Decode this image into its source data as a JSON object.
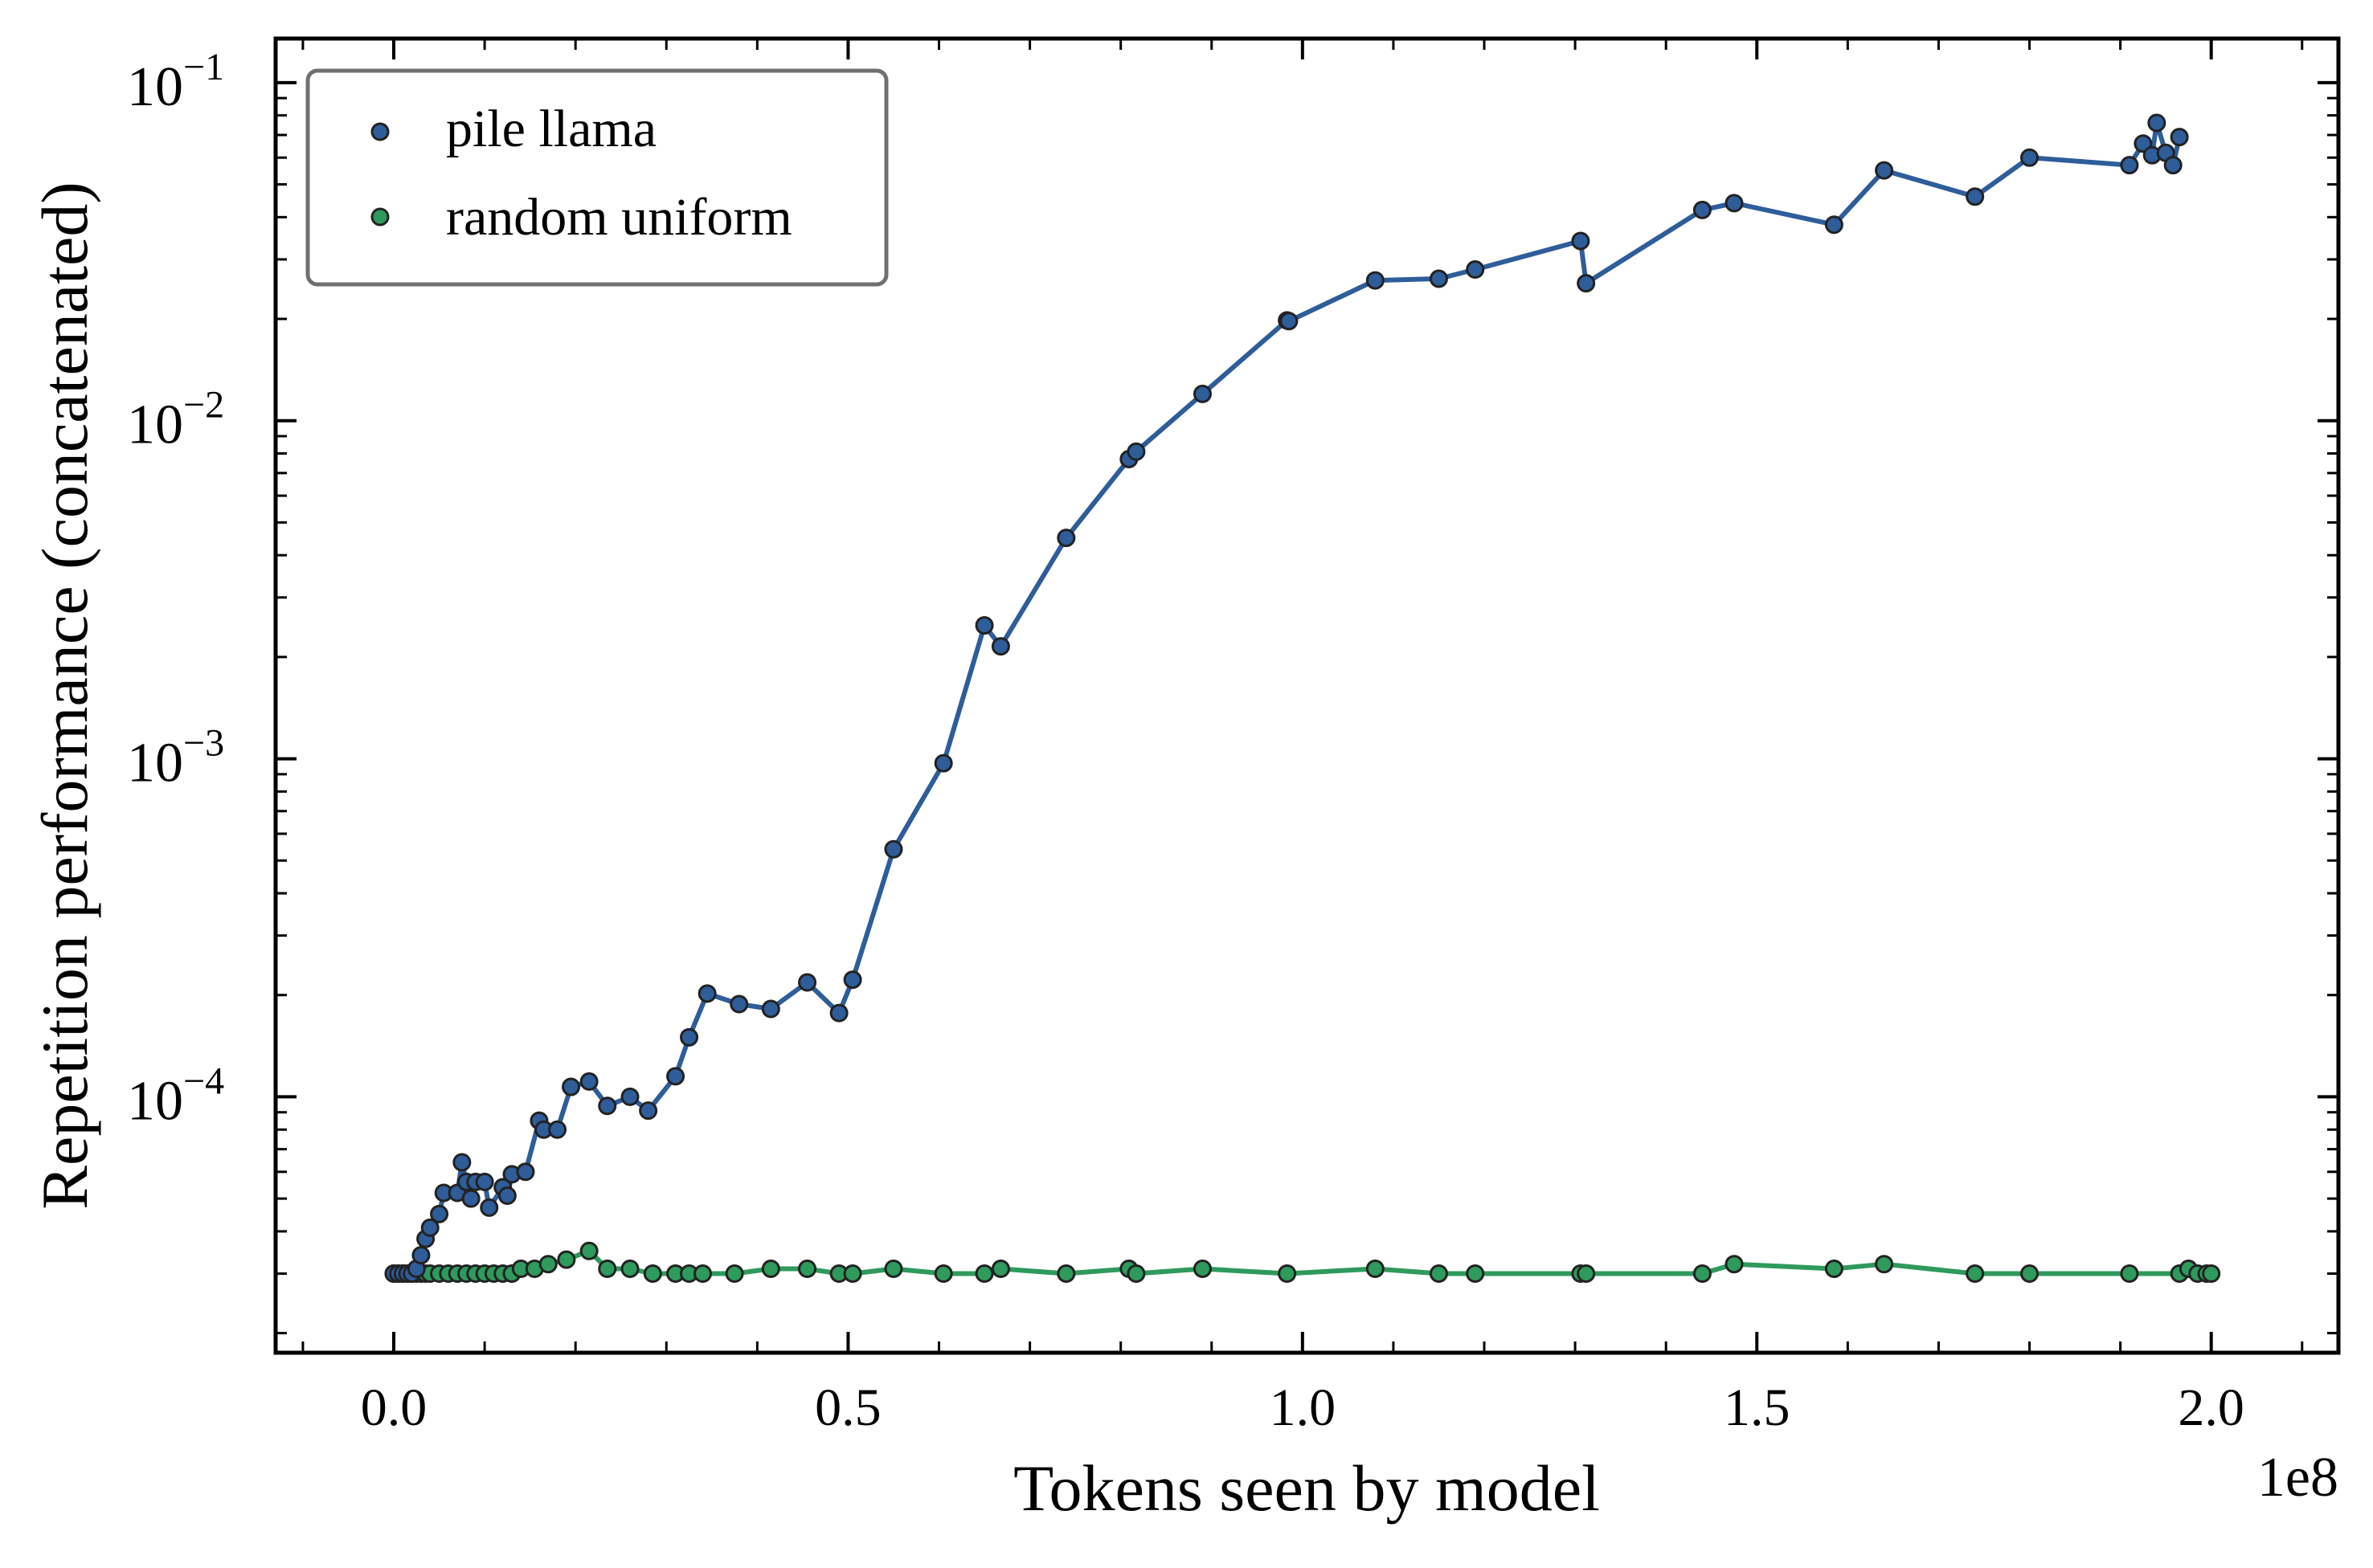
{
  "chart_data": {
    "type": "line",
    "title": "",
    "xlabel": "Tokens seen by model",
    "ylabel": "Repetition performance (concatenated)",
    "x_offset_label": "1e8",
    "x_scale_factor": 100000000,
    "xlim": [
      -13000000,
      214000000
    ],
    "ylim": [
      1.75e-05,
      0.135
    ],
    "yscale": "log",
    "x_ticks": [
      {
        "value": 0,
        "label": "0.0"
      },
      {
        "value": 50000000,
        "label": "0.5"
      },
      {
        "value": 100000000,
        "label": "1.0"
      },
      {
        "value": 150000000,
        "label": "1.5"
      },
      {
        "value": 200000000,
        "label": "2.0"
      }
    ],
    "y_ticks": [
      {
        "value": 0.1,
        "base": "10",
        "exp": "−1"
      },
      {
        "value": 0.01,
        "base": "10",
        "exp": "−2"
      },
      {
        "value": 0.001,
        "base": "10",
        "exp": "−3"
      },
      {
        "value": 0.0001,
        "base": "10",
        "exp": "−4"
      }
    ],
    "grid": false,
    "legend_position": "top-left",
    "series": [
      {
        "name": "pile llama",
        "color": "#2e5d9a",
        "points": [
          [
            0,
            3e-05
          ],
          [
            500000,
            3e-05
          ],
          [
            1000000,
            3e-05
          ],
          [
            1500000,
            3e-05
          ],
          [
            2000000,
            3e-05
          ],
          [
            2500000,
            3.1e-05
          ],
          [
            3000000,
            3.4e-05
          ],
          [
            3500000,
            3.8e-05
          ],
          [
            4000000,
            4.1e-05
          ],
          [
            5000000,
            4.5e-05
          ],
          [
            5500000,
            5.2e-05
          ],
          [
            7000000,
            5.2e-05
          ],
          [
            7500000,
            6.4e-05
          ],
          [
            8000000,
            5.6e-05
          ],
          [
            8500000,
            5e-05
          ],
          [
            9000000,
            5.6e-05
          ],
          [
            10000000,
            5.6e-05
          ],
          [
            10500000,
            4.7e-05
          ],
          [
            12000000,
            5.4e-05
          ],
          [
            12500000,
            5.1e-05
          ],
          [
            13000000,
            5.9e-05
          ],
          [
            14500000,
            6e-05
          ],
          [
            16000000,
            8.5e-05
          ],
          [
            16500000,
            8e-05
          ],
          [
            18000000,
            8e-05
          ],
          [
            19500000,
            0.000107
          ],
          [
            21500000,
            0.000111
          ],
          [
            23500000,
            9.4e-05
          ],
          [
            26000000,
            0.0001
          ],
          [
            28000000,
            9.1e-05
          ],
          [
            31000000,
            0.000115
          ],
          [
            32500000,
            0.00015
          ],
          [
            34500000,
            0.000202
          ],
          [
            38000000,
            0.000188
          ],
          [
            41500000,
            0.000182
          ],
          [
            45500000,
            0.000218
          ],
          [
            49000000,
            0.000177
          ],
          [
            50500000,
            0.000222
          ],
          [
            55000000,
            0.00054
          ],
          [
            60500000,
            0.00097
          ],
          [
            65000000,
            0.00248
          ],
          [
            66800000,
            0.00215
          ],
          [
            74000000,
            0.0045
          ],
          [
            80900000,
            0.0077
          ],
          [
            81700000,
            0.0081
          ],
          [
            89000000,
            0.012
          ],
          [
            98300000,
            0.0198
          ],
          [
            98500000,
            0.0197
          ],
          [
            108000000,
            0.026
          ],
          [
            115000000,
            0.0263
          ],
          [
            119000000,
            0.028
          ],
          [
            130600000,
            0.034
          ],
          [
            131200000,
            0.0255
          ],
          [
            144000000,
            0.042
          ],
          [
            147500000,
            0.044
          ],
          [
            158500000,
            0.038
          ],
          [
            164000000,
            0.055
          ],
          [
            174000000,
            0.046
          ],
          [
            180000000,
            0.06
          ],
          [
            191000000,
            0.057
          ],
          [
            192500000,
            0.066
          ],
          [
            193500000,
            0.061
          ],
          [
            194000000,
            0.076
          ],
          [
            195000000,
            0.062
          ],
          [
            195800000,
            0.057
          ],
          [
            196500000,
            0.069
          ]
        ]
      },
      {
        "name": "random uniform",
        "color": "#2e9a5c",
        "points": [
          [
            0,
            3e-05
          ],
          [
            500000,
            3e-05
          ],
          [
            1000000,
            3e-05
          ],
          [
            1500000,
            3e-05
          ],
          [
            2000000,
            3e-05
          ],
          [
            2500000,
            3e-05
          ],
          [
            3000000,
            3e-05
          ],
          [
            3500000,
            3e-05
          ],
          [
            4000000,
            3e-05
          ],
          [
            5000000,
            3e-05
          ],
          [
            6000000,
            3e-05
          ],
          [
            7000000,
            3e-05
          ],
          [
            8000000,
            3e-05
          ],
          [
            9000000,
            3e-05
          ],
          [
            10000000,
            3e-05
          ],
          [
            11000000,
            3e-05
          ],
          [
            12000000,
            3e-05
          ],
          [
            13000000,
            3e-05
          ],
          [
            14000000,
            3.1e-05
          ],
          [
            15500000,
            3.1e-05
          ],
          [
            17000000,
            3.2e-05
          ],
          [
            19000000,
            3.3e-05
          ],
          [
            21500000,
            3.5e-05
          ],
          [
            23500000,
            3.1e-05
          ],
          [
            26000000,
            3.1e-05
          ],
          [
            28500000,
            3e-05
          ],
          [
            31000000,
            3e-05
          ],
          [
            32500000,
            3e-05
          ],
          [
            34000000,
            3e-05
          ],
          [
            37500000,
            3e-05
          ],
          [
            41500000,
            3.1e-05
          ],
          [
            45500000,
            3.1e-05
          ],
          [
            49000000,
            3e-05
          ],
          [
            50500000,
            3e-05
          ],
          [
            55000000,
            3.1e-05
          ],
          [
            60500000,
            3e-05
          ],
          [
            65000000,
            3e-05
          ],
          [
            66800000,
            3.1e-05
          ],
          [
            74000000,
            3e-05
          ],
          [
            80900000,
            3.1e-05
          ],
          [
            81700000,
            3e-05
          ],
          [
            89000000,
            3.1e-05
          ],
          [
            98300000,
            3e-05
          ],
          [
            108000000,
            3.1e-05
          ],
          [
            115000000,
            3e-05
          ],
          [
            119000000,
            3e-05
          ],
          [
            130600000,
            3e-05
          ],
          [
            131200000,
            3e-05
          ],
          [
            144000000,
            3e-05
          ],
          [
            147500000,
            3.2e-05
          ],
          [
            158500000,
            3.1e-05
          ],
          [
            164000000,
            3.2e-05
          ],
          [
            174000000,
            3e-05
          ],
          [
            180000000,
            3e-05
          ],
          [
            191000000,
            3e-05
          ],
          [
            196500000,
            3e-05
          ],
          [
            197500000,
            3.1e-05
          ],
          [
            198500000,
            3e-05
          ],
          [
            199500000,
            3e-05
          ],
          [
            200000000,
            3e-05
          ]
        ]
      }
    ]
  }
}
